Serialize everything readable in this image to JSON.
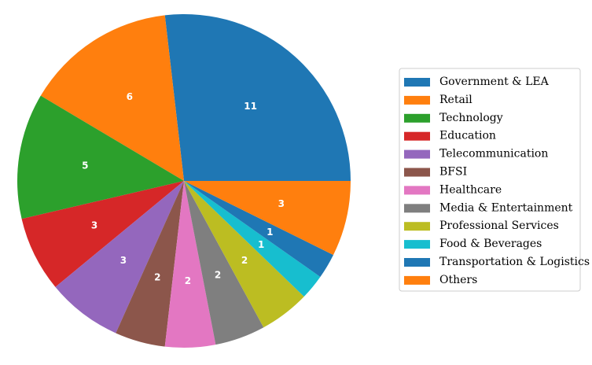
{
  "chart_data": {
    "type": "pie",
    "title": "",
    "slices": [
      {
        "label": "Government & LEA",
        "value": 11,
        "color": "#1f77b4"
      },
      {
        "label": "Retail",
        "value": 6,
        "color": "#ff7f0e"
      },
      {
        "label": "Technology",
        "value": 5,
        "color": "#2ca02c"
      },
      {
        "label": "Education",
        "value": 3,
        "color": "#d62728"
      },
      {
        "label": "Telecommunication",
        "value": 3,
        "color": "#9467bd"
      },
      {
        "label": "BFSI",
        "value": 2,
        "color": "#8c564b"
      },
      {
        "label": "Healthcare",
        "value": 2,
        "color": "#e377c2"
      },
      {
        "label": "Media & Entertainment",
        "value": 2,
        "color": "#7f7f7f"
      },
      {
        "label": "Professional Services",
        "value": 2,
        "color": "#bcbd22"
      },
      {
        "label": "Food & Beverages",
        "value": 1,
        "color": "#17becf"
      },
      {
        "label": "Transportation & Logistics",
        "value": 1,
        "color": "#1f77b4"
      },
      {
        "label": "Others",
        "value": 3,
        "color": "#ff7f0e"
      }
    ],
    "start_angle_deg": 0,
    "direction": "counterclockwise",
    "legend_placement": "right"
  }
}
